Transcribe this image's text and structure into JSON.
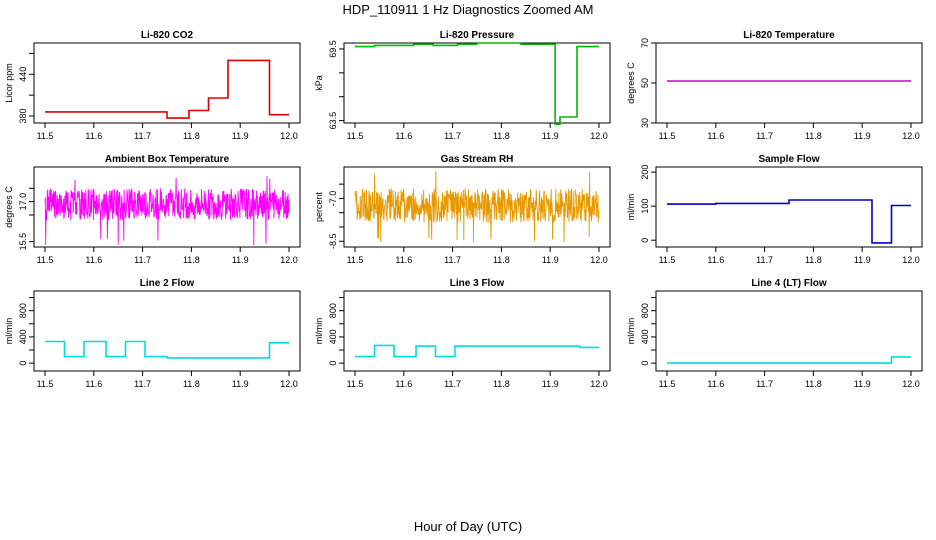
{
  "figure": {
    "title": "HDP_110911  1 Hz Diagnostics Zoomed AM",
    "xlabel": "Hour of Day (UTC)"
  },
  "chart_data": [
    {
      "type": "line",
      "title": "Li-820 CO2",
      "ylabel": "Licor ppm",
      "color": "#dd0000",
      "xlim": [
        11.5,
        12.0
      ],
      "ylim": [
        370,
        485
      ],
      "xticks": [
        "11.5",
        "11.6",
        "11.7",
        "11.8",
        "11.9",
        "12.0"
      ],
      "yticks": [
        380,
        410,
        440,
        470
      ],
      "ytick_labels": [
        "380",
        "",
        "440",
        ""
      ],
      "series": [
        {
          "x": [
            11.5,
            11.75,
            11.75,
            11.795,
            11.795,
            11.835,
            11.835,
            11.875,
            11.875,
            11.96,
            11.96,
            12.0
          ],
          "y": [
            386,
            386,
            377,
            377,
            388,
            388,
            406,
            406,
            460,
            460,
            382,
            382
          ]
        }
      ]
    },
    {
      "type": "line",
      "title": "Li-820 Pressure",
      "ylabel": "kPa",
      "color": "#00bb00",
      "xlim": [
        11.5,
        12.0
      ],
      "ylim": [
        63.3,
        70.0
      ],
      "xticks": [
        "11.5",
        "11.6",
        "11.7",
        "11.8",
        "11.9",
        "12.0"
      ],
      "yticks": [
        63.5,
        65.5,
        67.5,
        69.5
      ],
      "ytick_labels": [
        "63.5",
        "",
        "",
        "69.5"
      ],
      "series": [
        {
          "x": [
            11.5,
            11.54,
            11.54,
            11.58,
            11.58,
            11.62,
            11.62,
            11.66,
            11.66,
            11.71,
            11.71,
            11.75,
            11.75,
            11.84,
            11.84,
            11.91,
            11.91,
            11.92,
            11.92,
            11.955,
            11.955,
            12.0
          ],
          "y": [
            69.7,
            69.7,
            69.8,
            69.8,
            69.8,
            69.8,
            69.9,
            69.9,
            69.8,
            69.8,
            69.9,
            69.9,
            70.0,
            70.0,
            69.9,
            69.9,
            63.2,
            63.2,
            63.8,
            63.8,
            69.7,
            69.7
          ]
        }
      ]
    },
    {
      "type": "line",
      "title": "Li-820 Temperature",
      "ylabel": "degrees C",
      "color": "#cc00cc",
      "xlim": [
        11.5,
        12.0
      ],
      "ylim": [
        30,
        70
      ],
      "xticks": [
        "11.5",
        "11.6",
        "11.7",
        "11.8",
        "11.9",
        "12.0"
      ],
      "yticks": [
        30,
        50,
        70
      ],
      "ytick_labels": [
        "30",
        "50",
        "70"
      ],
      "series": [
        {
          "x": [
            11.5,
            12.0
          ],
          "y": [
            51,
            51
          ]
        }
      ]
    },
    {
      "type": "line",
      "title": "Ambient Box Temperature",
      "ylabel": "degrees C",
      "color": "#ff00ff",
      "xlim": [
        11.5,
        12.0
      ],
      "ylim": [
        15.3,
        18.3
      ],
      "xticks": [
        "11.5",
        "11.6",
        "11.7",
        "11.8",
        "11.9",
        "12.0"
      ],
      "yticks": [
        15.5,
        16.5,
        17.0,
        17.5
      ],
      "ytick_labels": [
        "15.5",
        "",
        "17.0",
        ""
      ],
      "noise": {
        "center": 16.9,
        "amplitude": 0.6,
        "spikes_low": 15.3,
        "spikes_high": 18.0
      }
    },
    {
      "type": "line",
      "title": "Gas Stream RH",
      "ylabel": "percent",
      "color": "#e69900",
      "xlim": [
        11.5,
        12.0
      ],
      "ylim": [
        -8.7,
        -5.9
      ],
      "xticks": [
        "11.5",
        "11.6",
        "11.7",
        "11.8",
        "11.9",
        "12.0"
      ],
      "yticks": [
        -8.5,
        -8.0,
        -7.5,
        -7.0,
        -6.5
      ],
      "ytick_labels": [
        "-8.5",
        "",
        "",
        "-7.0",
        ""
      ],
      "noise": {
        "center": -7.25,
        "amplitude": 0.6,
        "spikes_low": -8.6,
        "spikes_high": -6.0
      }
    },
    {
      "type": "line",
      "title": "Sample Flow",
      "ylabel": "ml/min",
      "color": "#0000cc",
      "xlim": [
        11.5,
        12.0
      ],
      "ylim": [
        -20,
        215
      ],
      "xticks": [
        "11.5",
        "11.6",
        "11.7",
        "11.8",
        "11.9",
        "12.0"
      ],
      "yticks": [
        0,
        100,
        200
      ],
      "ytick_labels": [
        "0",
        "100",
        "200"
      ],
      "series": [
        {
          "x": [
            11.5,
            11.6,
            11.6,
            11.75,
            11.75,
            11.92,
            11.92,
            11.96,
            11.96,
            12.0
          ],
          "y": [
            106,
            106,
            108,
            108,
            118,
            118,
            -8,
            -8,
            102,
            102
          ]
        }
      ]
    },
    {
      "type": "line",
      "title": "Line 2 Flow",
      "ylabel": "ml/min",
      "color": "#00dddd",
      "xlim": [
        11.5,
        12.0
      ],
      "ylim": [
        -120,
        1100
      ],
      "xticks": [
        "11.5",
        "11.6",
        "11.7",
        "11.8",
        "11.9",
        "12.0"
      ],
      "yticks": [
        0,
        200,
        400,
        600,
        800,
        1000
      ],
      "ytick_labels": [
        "0",
        "",
        "400",
        "",
        "800",
        ""
      ],
      "series": [
        {
          "x": [
            11.5,
            11.54,
            11.54,
            11.58,
            11.58,
            11.625,
            11.625,
            11.665,
            11.665,
            11.705,
            11.705,
            11.75,
            11.75,
            11.96,
            11.96,
            12.0
          ],
          "y": [
            330,
            330,
            100,
            100,
            330,
            330,
            100,
            100,
            330,
            330,
            100,
            100,
            80,
            80,
            310,
            310
          ]
        }
      ]
    },
    {
      "type": "line",
      "title": "Line 3 Flow",
      "ylabel": "ml/min",
      "color": "#00dddd",
      "xlim": [
        11.5,
        12.0
      ],
      "ylim": [
        -120,
        1100
      ],
      "xticks": [
        "11.5",
        "11.6",
        "11.7",
        "11.8",
        "11.9",
        "12.0"
      ],
      "yticks": [
        0,
        200,
        400,
        600,
        800,
        1000
      ],
      "ytick_labels": [
        "0",
        "",
        "400",
        "",
        "800",
        ""
      ],
      "series": [
        {
          "x": [
            11.5,
            11.54,
            11.54,
            11.58,
            11.58,
            11.625,
            11.625,
            11.665,
            11.665,
            11.705,
            11.705,
            11.96,
            11.96,
            12.0
          ],
          "y": [
            100,
            100,
            270,
            270,
            100,
            100,
            260,
            260,
            100,
            100,
            260,
            260,
            240,
            240
          ]
        }
      ]
    },
    {
      "type": "line",
      "title": "Line 4 (LT) Flow",
      "ylabel": "ml/min",
      "color": "#00dddd",
      "xlim": [
        11.5,
        12.0
      ],
      "ylim": [
        -120,
        1100
      ],
      "xticks": [
        "11.5",
        "11.6",
        "11.7",
        "11.8",
        "11.9",
        "12.0"
      ],
      "yticks": [
        0,
        200,
        400,
        600,
        800,
        1000
      ],
      "ytick_labels": [
        "0",
        "",
        "400",
        "",
        "800",
        ""
      ],
      "series": [
        {
          "x": [
            11.5,
            11.96,
            11.96,
            12.0
          ],
          "y": [
            0,
            0,
            95,
            95
          ]
        }
      ]
    }
  ]
}
